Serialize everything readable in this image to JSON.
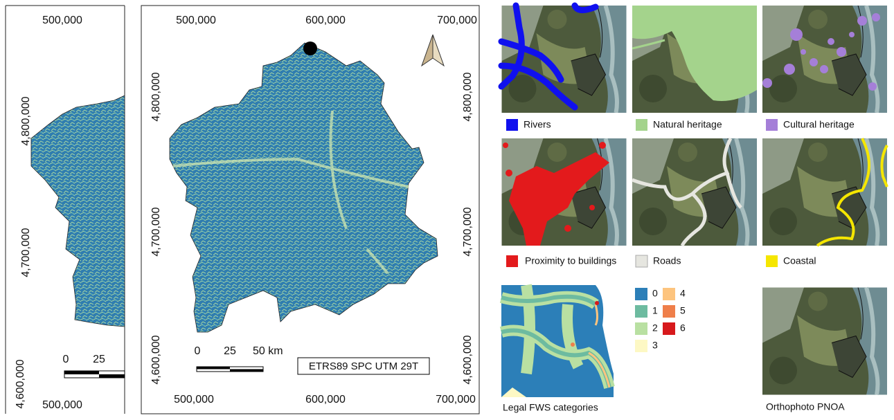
{
  "left_map": {
    "top_label": "500,000",
    "y_labels": [
      "4,800,000",
      "4,700,000",
      "4,600,000"
    ],
    "bottom_label": "500,000",
    "scale_labels": [
      "0",
      "25"
    ]
  },
  "main_map": {
    "top_labels": [
      "500,000",
      "600,000",
      "700,000"
    ],
    "left_labels": [
      "4,800,000",
      "4,700,000",
      "4,600,000"
    ],
    "right_labels": [
      "4,800,000",
      "4,700,000",
      "4,600,000"
    ],
    "bottom_labels": [
      "500,000",
      "600,000",
      "700,000"
    ],
    "scale_labels": [
      "0",
      "25",
      "50 km"
    ],
    "crs_label": "ETRS89 SPC UTM 29T"
  },
  "panels": [
    {
      "legend": "Rivers",
      "color": "#1010ee"
    },
    {
      "legend": "Natural heritage",
      "color": "#a4d38c"
    },
    {
      "legend": "Cultural heritage",
      "color": "#a57fd8"
    },
    {
      "legend": "Proximity to buildings",
      "color": "#e31a1c"
    },
    {
      "legend": "Roads",
      "color": "#e6e6e0"
    },
    {
      "legend": "Coastal",
      "color": "#f5e600"
    }
  ],
  "fws": {
    "title": "Legal FWS categories",
    "categories": [
      {
        "label": "0",
        "color": "#2c7fb8"
      },
      {
        "label": "1",
        "color": "#6dbba0"
      },
      {
        "label": "2",
        "color": "#b9e0a2"
      },
      {
        "label": "3",
        "color": "#fdf8c4"
      },
      {
        "label": "4",
        "color": "#fdc47e"
      },
      {
        "label": "5",
        "color": "#ef7f4a"
      },
      {
        "label": "6",
        "color": "#d7191c"
      }
    ]
  },
  "orthophoto": {
    "title": "Orthophoto PNOA"
  }
}
